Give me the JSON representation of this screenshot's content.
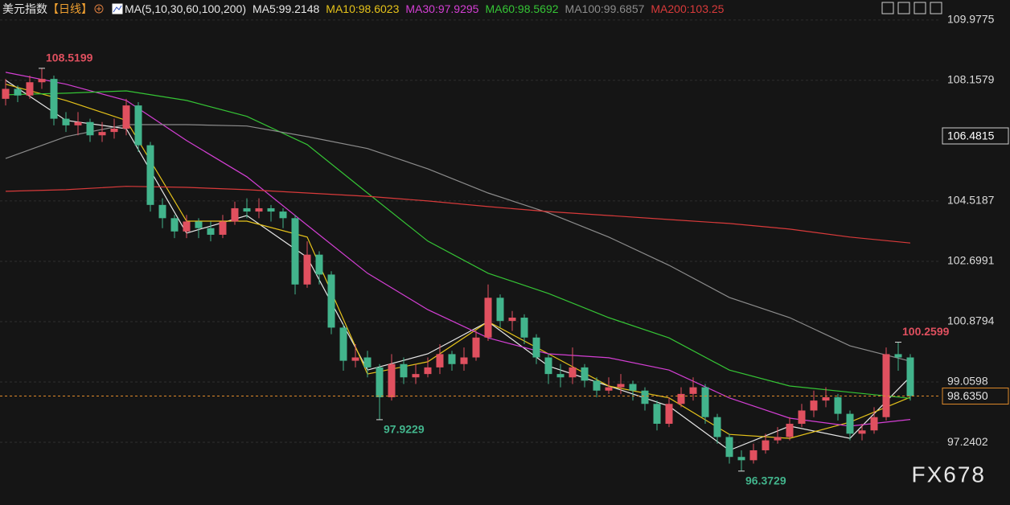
{
  "chart_data": {
    "type": "candlestick",
    "title": "美元指数",
    "period_label": "【日线】",
    "ma_label": "MA(5,10,30,60,100,200)",
    "watermark": "FX678",
    "up_color": "#e0505f",
    "down_color": "#42b48c",
    "ylim": [
      95.35,
      110.58
    ],
    "yticks": [
      97.2402,
      99.0598,
      100.8794,
      102.6991,
      104.5187,
      108.1579,
      109.9775
    ],
    "grid": true,
    "crosshair_price": 106.4815,
    "last_price": {
      "value": 98.635,
      "label": "98.6350"
    },
    "annotations": [
      {
        "x": 3,
        "value": 108.5199,
        "position": "above"
      },
      {
        "x": 31,
        "value": 97.9229,
        "position": "below"
      },
      {
        "x": 61,
        "value": 96.3729,
        "position": "below"
      },
      {
        "x": 74,
        "value": 100.2599,
        "position": "above"
      }
    ],
    "open": [
      107.6,
      107.9,
      107.7,
      108.1,
      108.2,
      107.0,
      106.8,
      106.9,
      106.5,
      106.6,
      106.7,
      107.4,
      106.2,
      104.4,
      104.0,
      103.6,
      103.9,
      103.7,
      103.5,
      103.9,
      104.3,
      104.2,
      104.3,
      104.2,
      104.0,
      102.0,
      102.9,
      102.3,
      100.7,
      99.7,
      99.8,
      99.5,
      98.6,
      99.6,
      99.2,
      99.3,
      99.5,
      99.9,
      99.6,
      99.8,
      100.4,
      101.6,
      100.9,
      101.0,
      100.4,
      99.8,
      99.3,
      99.2,
      99.5,
      99.1,
      98.8,
      98.9,
      99.0,
      98.8,
      98.4,
      97.8,
      98.4,
      98.7,
      98.9,
      98.0,
      97.4,
      96.8,
      96.7,
      97.0,
      97.3,
      97.4,
      97.8,
      98.2,
      98.5,
      98.6,
      98.1,
      97.5,
      97.6,
      98.0,
      99.9,
      99.8
    ],
    "high": [
      108.2,
      108.0,
      108.3,
      108.5199,
      108.3,
      107.2,
      107.2,
      107.0,
      106.9,
      107.0,
      107.6,
      107.5,
      106.3,
      104.6,
      104.1,
      104.1,
      104.0,
      103.9,
      104.1,
      104.5,
      104.6,
      104.6,
      104.4,
      104.3,
      104.1,
      103.3,
      103.0,
      102.4,
      100.8,
      100.2,
      100.0,
      99.6,
      99.9,
      99.8,
      99.6,
      99.8,
      100.2,
      100.0,
      100.1,
      100.6,
      102.0,
      101.7,
      101.2,
      101.1,
      100.5,
      99.9,
      99.6,
      100.1,
      99.6,
      99.2,
      99.2,
      99.3,
      99.1,
      98.9,
      98.5,
      98.6,
      98.9,
      99.2,
      99.0,
      98.1,
      97.5,
      97.0,
      97.2,
      97.5,
      97.7,
      98.0,
      98.4,
      98.8,
      98.9,
      98.7,
      98.2,
      97.8,
      98.3,
      100.1,
      100.2599,
      99.9
    ],
    "low": [
      107.4,
      107.5,
      107.6,
      107.9,
      106.8,
      106.6,
      106.5,
      106.3,
      106.3,
      106.4,
      106.5,
      106.0,
      104.2,
      103.7,
      103.4,
      103.4,
      103.4,
      103.3,
      103.4,
      103.8,
      104.0,
      104.0,
      103.9,
      103.7,
      101.7,
      101.9,
      102.0,
      100.5,
      99.4,
      99.5,
      99.2,
      97.9229,
      98.5,
      99.0,
      99.0,
      99.2,
      99.3,
      99.4,
      99.4,
      99.7,
      100.3,
      100.7,
      100.6,
      100.2,
      99.6,
      99.0,
      98.9,
      99.0,
      98.9,
      98.6,
      98.7,
      98.7,
      98.5,
      98.2,
      97.6,
      97.7,
      98.3,
      98.5,
      97.8,
      97.2,
      96.6,
      96.3729,
      96.6,
      96.9,
      97.2,
      97.3,
      97.7,
      98.0,
      98.3,
      97.9,
      97.3,
      97.3,
      97.5,
      97.9,
      99.4,
      98.5
    ],
    "close": [
      107.9,
      107.7,
      108.1,
      108.2,
      107.0,
      106.8,
      106.9,
      106.5,
      106.6,
      106.7,
      107.4,
      106.2,
      104.4,
      104.0,
      103.6,
      103.9,
      103.7,
      103.5,
      103.9,
      104.3,
      104.2,
      104.3,
      104.2,
      104.0,
      102.0,
      102.9,
      102.3,
      100.7,
      99.7,
      99.8,
      99.5,
      98.6,
      99.6,
      99.2,
      99.3,
      99.5,
      99.9,
      99.6,
      99.8,
      100.4,
      101.6,
      100.9,
      101.0,
      100.4,
      99.8,
      99.3,
      99.2,
      99.5,
      99.1,
      98.8,
      98.9,
      99.0,
      98.8,
      98.4,
      97.8,
      98.4,
      98.7,
      98.9,
      98.0,
      97.4,
      96.8,
      96.7,
      97.0,
      97.3,
      97.4,
      97.8,
      98.2,
      98.5,
      98.6,
      98.1,
      97.5,
      97.6,
      98.0,
      99.9,
      99.8,
      98.635
    ],
    "series": [
      {
        "name": "MA5:99.2148",
        "color": "#e8e8e8",
        "x": [
          0,
          5,
          10,
          15,
          20,
          25,
          30,
          35,
          40,
          45,
          50,
          55,
          60,
          65,
          70,
          75
        ],
        "values": [
          108.16,
          106.95,
          106.7,
          103.55,
          104.08,
          102.82,
          99.42,
          99.91,
          100.88,
          99.54,
          98.94,
          98.33,
          97.0,
          97.73,
          97.36,
          99.2148
        ]
      },
      {
        "name": "MA10:98.6023",
        "color": "#e5c21a",
        "x": [
          0,
          5,
          10,
          15,
          20,
          25,
          30,
          35,
          40,
          45,
          50,
          55,
          60,
          65,
          70,
          75
        ],
        "values": [
          108.04,
          107.55,
          106.95,
          103.91,
          103.91,
          103.43,
          99.3,
          99.67,
          100.88,
          99.91,
          98.94,
          98.58,
          97.48,
          97.36,
          97.85,
          98.6023
        ]
      },
      {
        "name": "MA30:97.9295",
        "color": "#d43fd4",
        "x": [
          0,
          5,
          10,
          15,
          20,
          25,
          30,
          35,
          40,
          45,
          50,
          55,
          60,
          65,
          70,
          75
        ],
        "values": [
          108.4,
          108.04,
          107.55,
          106.34,
          105.25,
          103.79,
          102.34,
          101.24,
          100.39,
          99.91,
          99.79,
          99.42,
          98.58,
          97.97,
          97.73,
          97.9295
        ]
      },
      {
        "name": "MA60:98.5692",
        "color": "#35c435",
        "x": [
          0,
          5,
          10,
          15,
          20,
          25,
          30,
          35,
          40,
          45,
          50,
          55,
          60,
          65,
          70,
          75
        ],
        "values": [
          107.72,
          107.77,
          107.84,
          107.55,
          107.07,
          106.22,
          104.76,
          103.31,
          102.34,
          101.73,
          101.0,
          100.39,
          99.42,
          98.94,
          98.75,
          98.5692
        ]
      },
      {
        "name": "MA100:99.6857",
        "color": "#8c8c8c",
        "x": [
          0,
          5,
          10,
          15,
          20,
          25,
          30,
          35,
          40,
          45,
          50,
          55,
          60,
          65,
          70,
          75
        ],
        "values": [
          105.8,
          106.46,
          106.82,
          106.82,
          106.78,
          106.46,
          106.1,
          105.49,
          104.76,
          104.16,
          103.43,
          102.58,
          101.61,
          101.0,
          100.15,
          99.6857
        ]
      },
      {
        "name": "MA200:103.25",
        "color": "#d83a3a",
        "x": [
          0,
          5,
          10,
          15,
          20,
          25,
          30,
          35,
          40,
          45,
          50,
          55,
          60,
          65,
          70,
          75
        ],
        "values": [
          104.81,
          104.86,
          104.96,
          104.93,
          104.86,
          104.76,
          104.66,
          104.52,
          104.35,
          104.2,
          104.08,
          103.96,
          103.84,
          103.67,
          103.43,
          103.25
        ]
      }
    ]
  }
}
